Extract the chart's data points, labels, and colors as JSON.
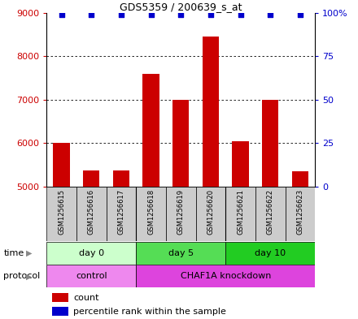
{
  "title": "GDS5359 / 200639_s_at",
  "samples": [
    "GSM1256615",
    "GSM1256616",
    "GSM1256617",
    "GSM1256618",
    "GSM1256619",
    "GSM1256620",
    "GSM1256621",
    "GSM1256622",
    "GSM1256623"
  ],
  "counts": [
    6000,
    5380,
    5380,
    7600,
    7000,
    8450,
    6050,
    7000,
    5350
  ],
  "percentiles": [
    99,
    99,
    99,
    99,
    99,
    99,
    99,
    99,
    99
  ],
  "ylim": [
    5000,
    9000
  ],
  "right_yticks": [
    0,
    25,
    50,
    75,
    100
  ],
  "left_yticks": [
    5000,
    6000,
    7000,
    8000,
    9000
  ],
  "bar_color": "#cc0000",
  "dot_color": "#0000cc",
  "bar_width": 0.55,
  "time_groups": [
    {
      "label": "day 0",
      "start": 0,
      "end": 3,
      "color": "#ccffcc"
    },
    {
      "label": "day 5",
      "start": 3,
      "end": 6,
      "color": "#55dd55"
    },
    {
      "label": "day 10",
      "start": 6,
      "end": 9,
      "color": "#22cc22"
    }
  ],
  "protocol_groups": [
    {
      "label": "control",
      "start": 0,
      "end": 3,
      "color": "#ee88ee"
    },
    {
      "label": "CHAF1A knockdown",
      "start": 3,
      "end": 9,
      "color": "#dd44dd"
    }
  ],
  "legend_count_color": "#cc0000",
  "legend_dot_color": "#0000cc",
  "tick_label_bg": "#cccccc",
  "left_axis_color": "#cc0000",
  "right_axis_color": "#0000cc",
  "grid_yticks": [
    6000,
    7000,
    8000
  ],
  "fig_width": 4.4,
  "fig_height": 3.93
}
